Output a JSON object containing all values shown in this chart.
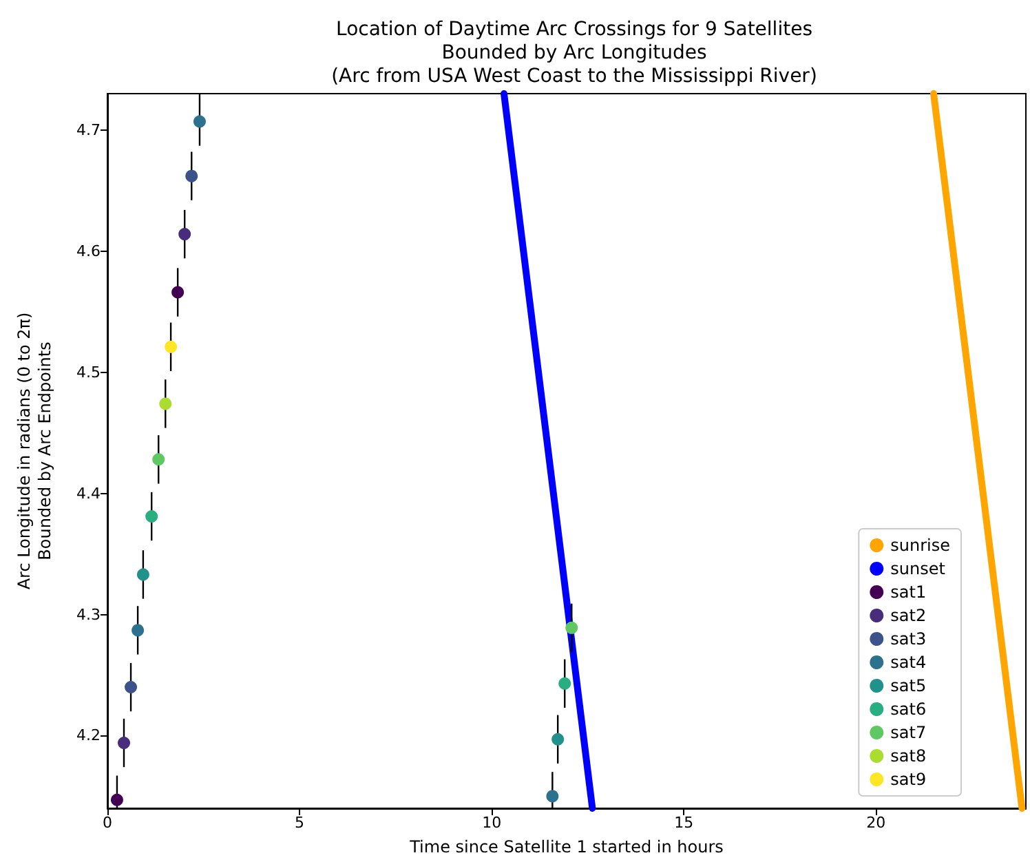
{
  "chart_data": {
    "type": "scatter",
    "title": "Location of Daytime Arc Crossings for 9 Satellites\nBounded by Arc Longitudes\n(Arc from USA West Coast to the Mississippi River)",
    "xlabel": "Time since Satellite 1 started in hours",
    "ylabel": "Arc Longitude in radians (0 to 2π)\nBounded by Arc Endpoints",
    "xlim": [
      0,
      23.9
    ],
    "xticks": [
      0,
      5,
      10,
      15,
      20
    ],
    "ylim": [
      4.14,
      4.73
    ],
    "yticks": [
      4.2,
      4.3,
      4.4,
      4.5,
      4.6,
      4.7
    ],
    "grid": false,
    "legend": "bottom right",
    "marker": "circle",
    "series": [
      {
        "name": "sunrise",
        "type": "line",
        "marker": "none",
        "color": "#ffa500",
        "x": [
          21.5,
          23.8
        ],
        "values": [
          4.73,
          4.14
        ]
      },
      {
        "name": "sunset",
        "type": "line",
        "marker": "none",
        "color": "#0000ff",
        "x": [
          10.32,
          12.62
        ],
        "values": [
          4.73,
          4.14
        ]
      },
      {
        "name": "sat1",
        "color": "#440154",
        "x": [
          0.25,
          1.83
        ],
        "values": [
          4.147,
          4.566
        ],
        "errors": [
          [
            4.14,
            4.167
          ],
          [
            4.546,
            4.586
          ]
        ]
      },
      {
        "name": "sat2",
        "color": "#472d7b",
        "x": [
          0.43,
          2.01
        ],
        "values": [
          4.194,
          4.614
        ],
        "errors": [
          [
            4.174,
            4.214
          ],
          [
            4.594,
            4.634
          ]
        ]
      },
      {
        "name": "sat3",
        "color": "#3b528b",
        "x": [
          0.61,
          2.19
        ],
        "values": [
          4.24,
          4.662
        ],
        "errors": [
          [
            4.22,
            4.26
          ],
          [
            4.642,
            4.682
          ]
        ]
      },
      {
        "name": "sat4",
        "color": "#2c728e",
        "x": [
          0.79,
          2.4,
          11.58
        ],
        "values": [
          4.287,
          4.707,
          4.15
        ],
        "errors": [
          [
            4.267,
            4.307
          ],
          [
            4.687,
            4.73
          ],
          [
            4.14,
            4.17
          ]
        ]
      },
      {
        "name": "sat5",
        "color": "#21918c",
        "x": [
          0.93,
          11.72
        ],
        "values": [
          4.333,
          4.197
        ],
        "errors": [
          [
            4.313,
            4.353
          ],
          [
            4.177,
            4.217
          ]
        ]
      },
      {
        "name": "sat6",
        "color": "#28ae80",
        "x": [
          1.15,
          11.9
        ],
        "values": [
          4.381,
          4.243
        ],
        "errors": [
          [
            4.361,
            4.401
          ],
          [
            4.223,
            4.263
          ]
        ]
      },
      {
        "name": "sat7",
        "color": "#5ec962",
        "x": [
          1.33,
          12.08
        ],
        "values": [
          4.428,
          4.289
        ],
        "errors": [
          [
            4.408,
            4.448
          ],
          [
            4.269,
            4.309
          ]
        ]
      },
      {
        "name": "sat8",
        "color": "#addc30",
        "x": [
          1.51
        ],
        "values": [
          4.474
        ],
        "errors": [
          [
            4.454,
            4.494
          ]
        ]
      },
      {
        "name": "sat9",
        "color": "#fde725",
        "x": [
          1.65
        ],
        "values": [
          4.521
        ],
        "errors": [
          [
            4.501,
            4.541
          ]
        ]
      }
    ]
  }
}
